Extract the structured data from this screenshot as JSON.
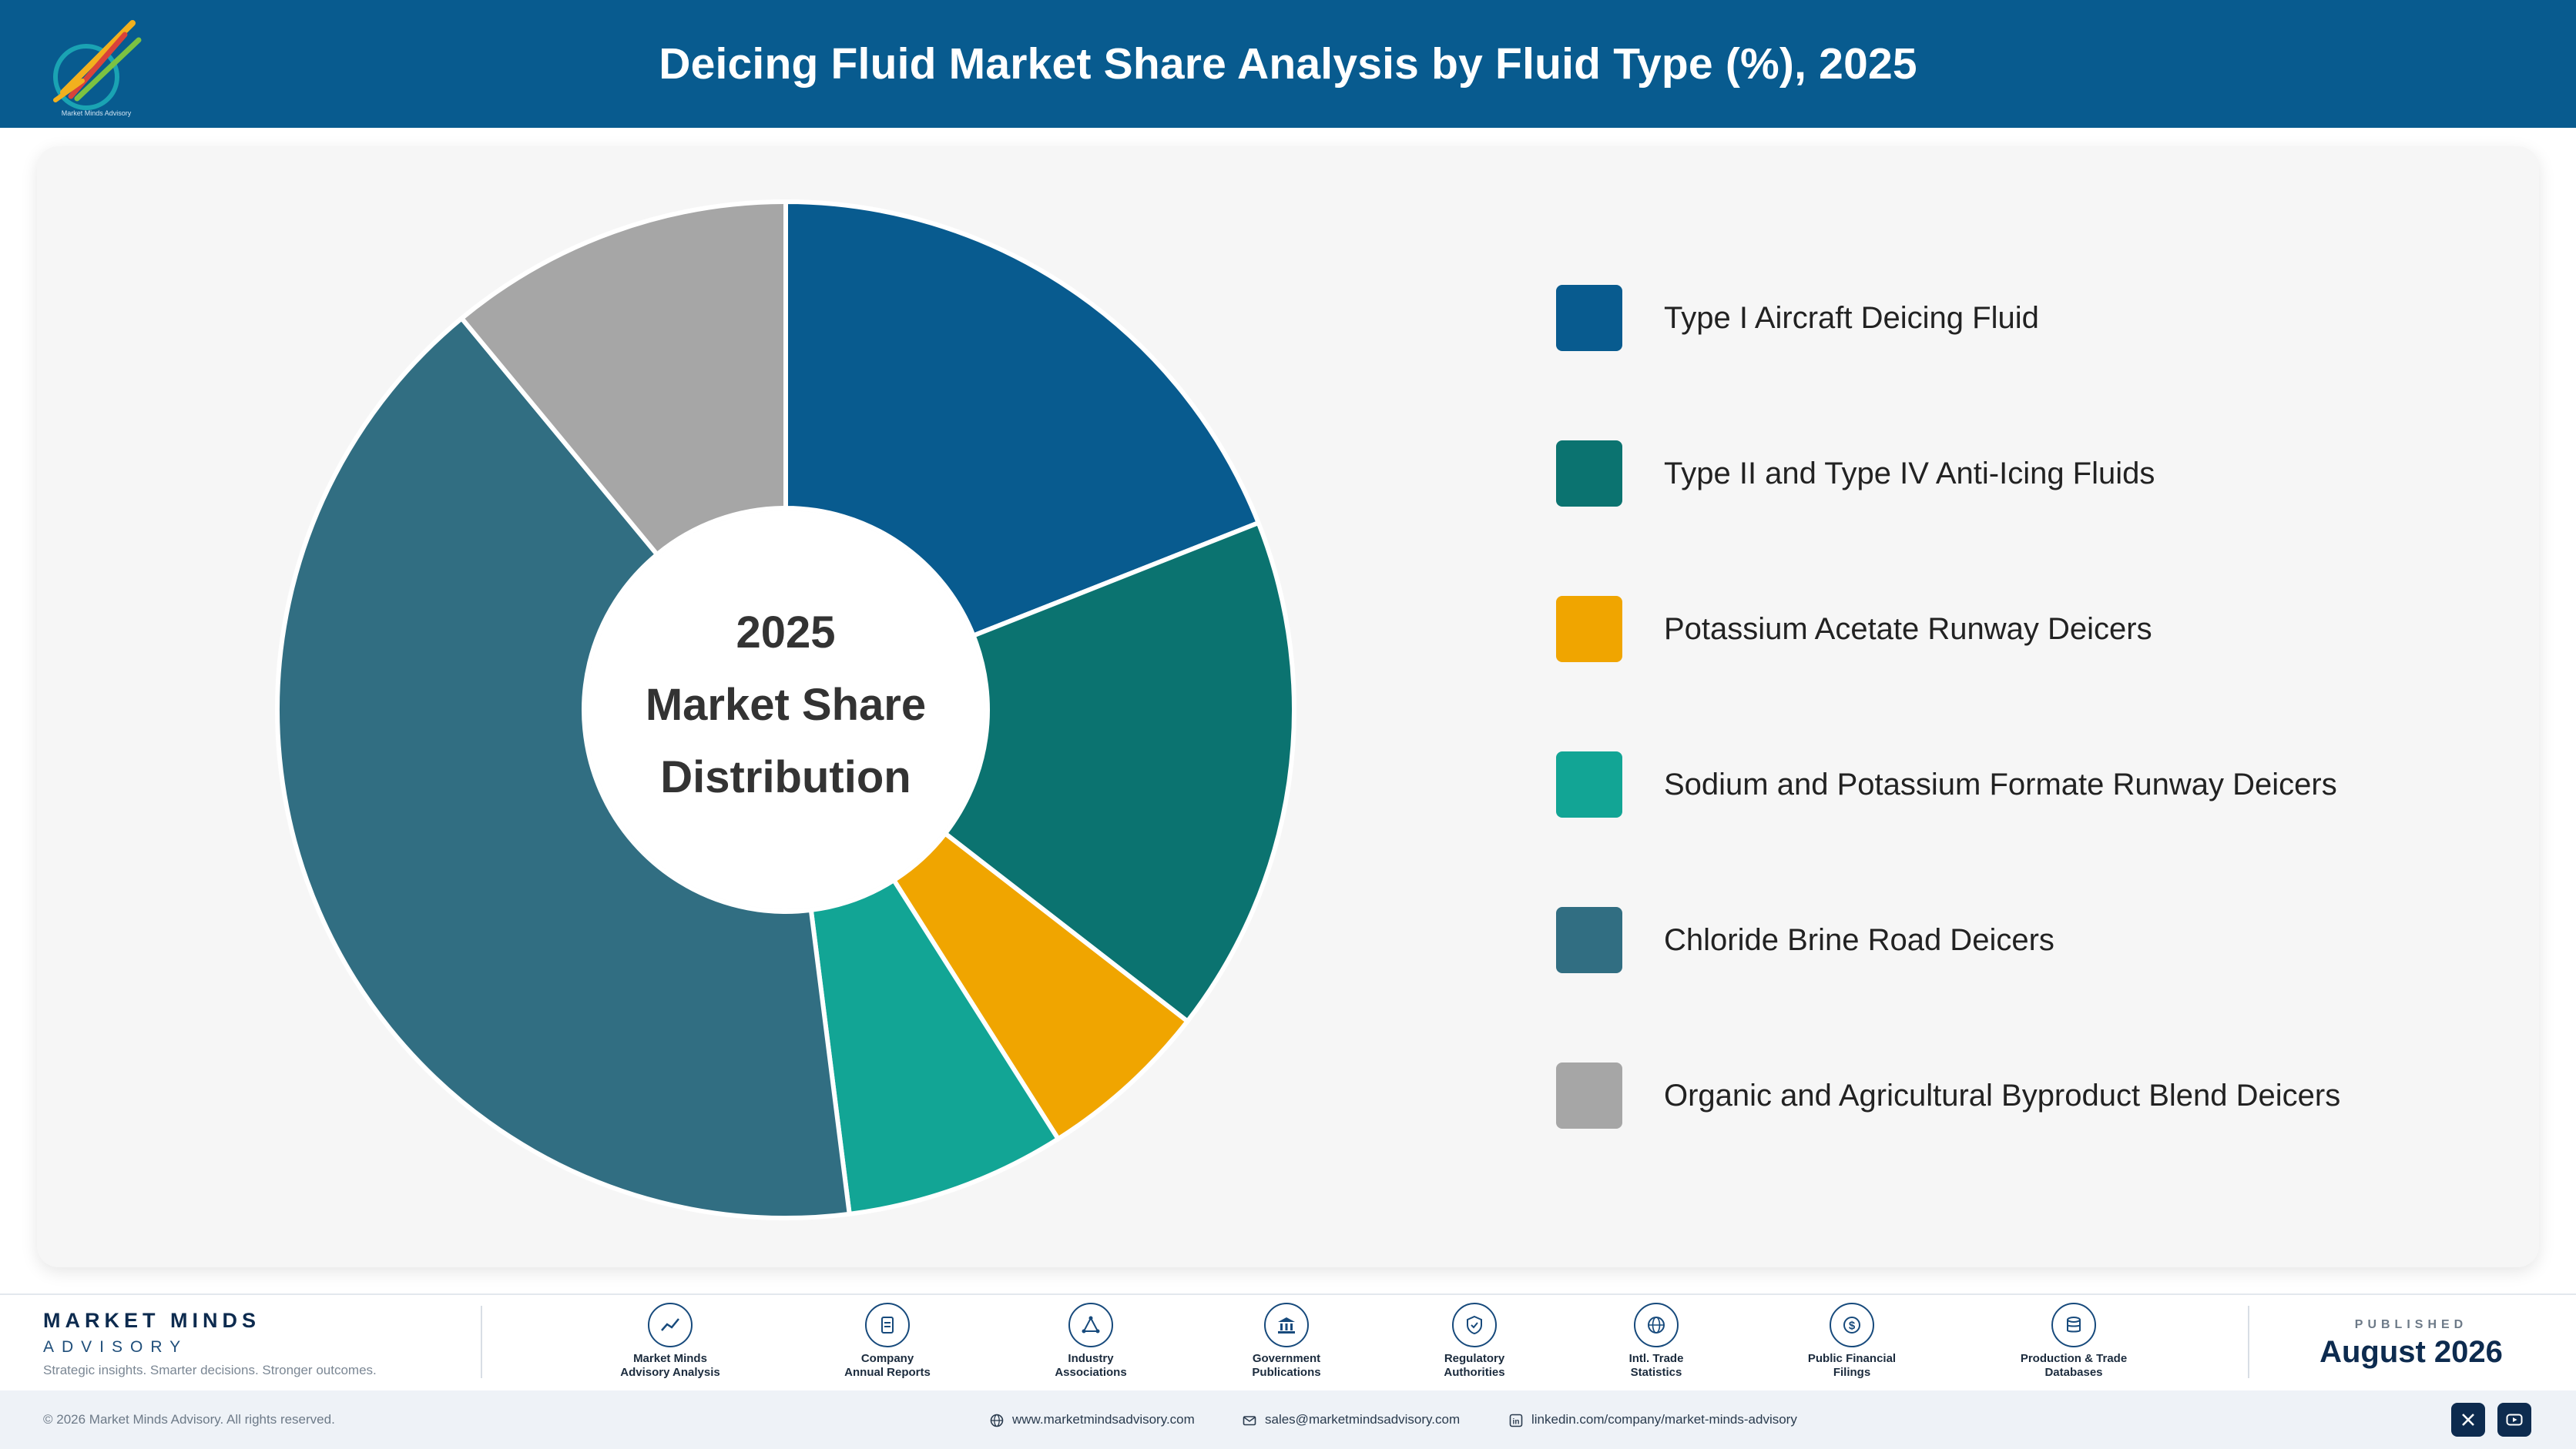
{
  "header": {
    "title": "Deicing Fluid Market Share Analysis by Fluid Type (%), 2025",
    "background": "#085b8f"
  },
  "center_label": {
    "line1": "2025",
    "line2": "Market Share",
    "line3": "Distribution"
  },
  "chart_data": {
    "type": "pie",
    "style": "donut",
    "title": "Deicing Fluid Market Share Analysis by Fluid Type (%), 2025",
    "legend_position": "right",
    "categories": [
      "Type I Aircraft Deicing Fluid",
      "Type II and Type IV Anti-Icing Fluids",
      "Potassium Acetate Runway Deicers",
      "Sodium and Potassium Formate Runway Deicers",
      "Chloride Brine Road Deicers",
      "Organic and Agricultural Byproduct Blend Deicers"
    ],
    "values": [
      19.0,
      16.5,
      5.5,
      7.0,
      41.0,
      11.0
    ],
    "colors": [
      "#085b8f",
      "#0b7370",
      "#f0a500",
      "#12a595",
      "#316e82",
      "#a6a6a6"
    ]
  },
  "footer": {
    "brand_name": "MARKET MINDS",
    "brand_sub": "ADVISORY",
    "tagline": "Strategic insights. Smarter decisions. Stronger outcomes.",
    "sources": [
      {
        "line1": "Market Minds",
        "line2": "Advisory Analysis",
        "icon": "chart-trend-icon"
      },
      {
        "line1": "Company",
        "line2": "Annual Reports",
        "icon": "document-icon"
      },
      {
        "line1": "Industry",
        "line2": "Associations",
        "icon": "network-icon"
      },
      {
        "line1": "Government",
        "line2": "Publications",
        "icon": "government-building-icon"
      },
      {
        "line1": "Regulatory",
        "line2": "Authorities",
        "icon": "shield-check-icon"
      },
      {
        "line1": "Intl. Trade",
        "line2": "Statistics",
        "icon": "globe-icon"
      },
      {
        "line1": "Public Financial",
        "line2": "Filings",
        "icon": "dollar-coin-icon"
      },
      {
        "line1": "Production & Trade",
        "line2": "Databases",
        "icon": "database-icon"
      }
    ],
    "published_label": "PUBLISHED",
    "published_date": "August 2026",
    "copyright": "© 2026 Market Minds Advisory. All rights reserved.",
    "website": "www.marketmindsadvisory.com",
    "email": "sales@marketmindsadvisory.com",
    "linkedin": "linkedin.com/company/market-minds-advisory"
  }
}
